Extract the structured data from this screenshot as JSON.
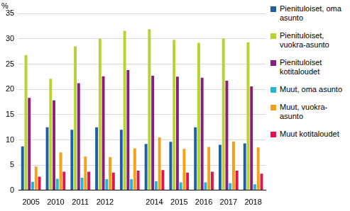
{
  "chart_data": {
    "type": "bar",
    "ylabel": "%",
    "categories": [
      "2005",
      "2010",
      "2011",
      "2012",
      null,
      "2014",
      "2015",
      "2016",
      "2017",
      "2018"
    ],
    "series": [
      {
        "name": "Pienituloiset, oma asunto",
        "color": "#1f5fa8",
        "values": [
          8.7,
          12.5,
          12.0,
          12.5,
          12.0,
          9.2,
          9.6,
          12.5,
          9.0,
          9.3
        ]
      },
      {
        "name": "Pienituloiset, vuokra-asunto",
        "color": "#b5d334",
        "values": [
          26.8,
          22.1,
          28.5,
          30.0,
          31.6,
          31.9,
          29.8,
          29.2,
          30.1,
          29.3
        ]
      },
      {
        "name": "Pienituloiset kotitaloudet",
        "color": "#8a1e7a",
        "values": [
          18.3,
          17.8,
          21.2,
          22.6,
          23.8,
          22.7,
          22.5,
          22.3,
          21.7,
          20.6
        ]
      },
      {
        "name": "Muut, oma asunto",
        "color": "#27b5d4",
        "values": [
          1.7,
          2.3,
          2.5,
          2.2,
          2.2,
          1.8,
          1.6,
          1.6,
          1.4,
          1.2
        ]
      },
      {
        "name": "Muut, vuokra-asunto",
        "color": "#f5a01a",
        "values": [
          4.7,
          7.5,
          6.7,
          6.6,
          8.3,
          10.5,
          8.2,
          8.6,
          9.7,
          8.5
        ]
      },
      {
        "name": "Muut kotitaloudet",
        "color": "#e2134e",
        "values": [
          2.7,
          3.7,
          3.7,
          3.5,
          3.9,
          4.0,
          3.5,
          3.7,
          3.9,
          3.3
        ]
      }
    ],
    "ylim": [
      0,
      35
    ],
    "yticks": [
      0,
      5,
      10,
      15,
      20,
      25,
      30,
      35
    ],
    "grid": true,
    "legend": "right"
  }
}
